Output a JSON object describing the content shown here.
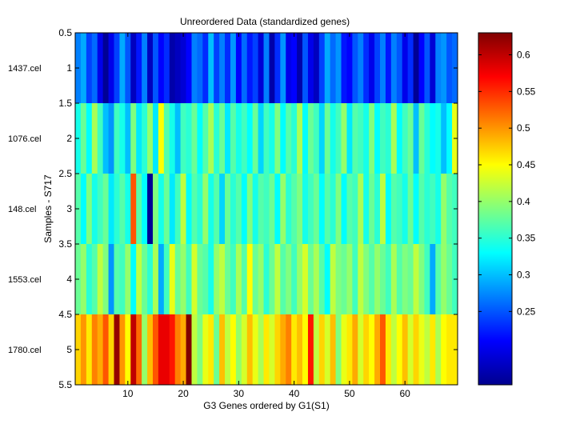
{
  "chart_data": {
    "type": "heatmap",
    "title": "Unreordered Data (standardized genes)",
    "xlabel": "G3 Genes ordered by G1(S1)",
    "ylabel": "Samples - S717",
    "xlim": [
      0.5,
      69.5
    ],
    "ylim": [
      0.5,
      5.5
    ],
    "x_ticks": [
      10,
      20,
      30,
      40,
      50,
      60
    ],
    "y_ticks": [
      0.5,
      1,
      1.5,
      2,
      2.5,
      3,
      3.5,
      4,
      4.5,
      5,
      5.5
    ],
    "row_labels": [
      "1437.cel",
      "1076.cel",
      "148.cel",
      "1553.cel",
      "1780.cel"
    ],
    "colorbar": {
      "colormap": "jet",
      "clim": [
        0.15,
        0.63
      ],
      "ticks": [
        0.25,
        0.3,
        0.35,
        0.4,
        0.45,
        0.5,
        0.55,
        0.6
      ],
      "tick_labels": [
        "0.25",
        "0.3",
        "0.35",
        "0.4",
        "0.45",
        "0.5",
        "0.55",
        "0.6"
      ]
    },
    "rows": [
      {
        "name": "1437.cel",
        "values": [
          0.27,
          0.29,
          0.24,
          0.26,
          0.2,
          0.16,
          0.2,
          0.24,
          0.29,
          0.25,
          0.18,
          0.22,
          0.27,
          0.18,
          0.25,
          0.21,
          0.23,
          0.17,
          0.18,
          0.19,
          0.21,
          0.27,
          0.26,
          0.23,
          0.3,
          0.24,
          0.27,
          0.23,
          0.28,
          0.21,
          0.26,
          0.22,
          0.24,
          0.19,
          0.27,
          0.17,
          0.23,
          0.28,
          0.2,
          0.21,
          0.17,
          0.25,
          0.2,
          0.18,
          0.24,
          0.29,
          0.26,
          0.28,
          0.22,
          0.21,
          0.25,
          0.27,
          0.23,
          0.2,
          0.24,
          0.27,
          0.22,
          0.27,
          0.25,
          0.2,
          0.23,
          0.16,
          0.21,
          0.25,
          0.19,
          0.27,
          0.28,
          0.25,
          0.26
        ]
      },
      {
        "name": "1076.cel",
        "values": [
          0.34,
          0.38,
          0.33,
          0.41,
          0.36,
          0.3,
          0.28,
          0.36,
          0.34,
          0.3,
          0.39,
          0.32,
          0.35,
          0.4,
          0.32,
          0.45,
          0.37,
          0.34,
          0.3,
          0.36,
          0.35,
          0.38,
          0.33,
          0.37,
          0.41,
          0.35,
          0.38,
          0.32,
          0.37,
          0.34,
          0.36,
          0.33,
          0.38,
          0.31,
          0.36,
          0.34,
          0.39,
          0.33,
          0.37,
          0.35,
          0.41,
          0.33,
          0.38,
          0.36,
          0.31,
          0.38,
          0.34,
          0.36,
          0.4,
          0.32,
          0.37,
          0.36,
          0.34,
          0.39,
          0.33,
          0.36,
          0.35,
          0.41,
          0.33,
          0.36,
          0.38,
          0.3,
          0.38,
          0.35,
          0.33,
          0.34,
          0.3,
          0.33,
          0.44
        ]
      },
      {
        "name": "148.cel",
        "values": [
          0.37,
          0.33,
          0.39,
          0.34,
          0.36,
          0.38,
          0.32,
          0.35,
          0.37,
          0.34,
          0.53,
          0.37,
          0.33,
          0.16,
          0.39,
          0.34,
          0.38,
          0.32,
          0.36,
          0.42,
          0.33,
          0.37,
          0.35,
          0.4,
          0.34,
          0.37,
          0.31,
          0.38,
          0.35,
          0.37,
          0.33,
          0.39,
          0.34,
          0.37,
          0.36,
          0.38,
          0.33,
          0.4,
          0.35,
          0.37,
          0.39,
          0.34,
          0.36,
          0.38,
          0.33,
          0.37,
          0.35,
          0.39,
          0.33,
          0.37,
          0.36,
          0.41,
          0.34,
          0.38,
          0.35,
          0.42,
          0.33,
          0.37,
          0.36,
          0.34,
          0.38,
          0.33,
          0.37,
          0.35,
          0.36,
          0.34,
          0.4,
          0.37,
          0.36
        ]
      },
      {
        "name": "1553.cel",
        "values": [
          0.38,
          0.4,
          0.35,
          0.37,
          0.42,
          0.39,
          0.28,
          0.37,
          0.36,
          0.4,
          0.33,
          0.42,
          0.38,
          0.35,
          0.41,
          0.29,
          0.36,
          0.44,
          0.38,
          0.4,
          0.36,
          0.43,
          0.38,
          0.37,
          0.34,
          0.4,
          0.42,
          0.38,
          0.36,
          0.41,
          0.37,
          0.45,
          0.38,
          0.4,
          0.35,
          0.38,
          0.42,
          0.37,
          0.39,
          0.36,
          0.4,
          0.43,
          0.38,
          0.41,
          0.37,
          0.33,
          0.42,
          0.39,
          0.38,
          0.4,
          0.36,
          0.42,
          0.39,
          0.37,
          0.4,
          0.38,
          0.36,
          0.41,
          0.37,
          0.39,
          0.38,
          0.42,
          0.39,
          0.36,
          0.29,
          0.37,
          0.4,
          0.38,
          0.36
        ]
      },
      {
        "name": "1780.cel",
        "values": [
          0.47,
          0.5,
          0.46,
          0.51,
          0.49,
          0.53,
          0.47,
          0.62,
          0.5,
          0.45,
          0.6,
          0.52,
          0.4,
          0.48,
          0.53,
          0.58,
          0.58,
          0.56,
          0.51,
          0.49,
          0.63,
          0.42,
          0.39,
          0.44,
          0.46,
          0.38,
          0.48,
          0.42,
          0.45,
          0.4,
          0.43,
          0.48,
          0.44,
          0.41,
          0.46,
          0.43,
          0.47,
          0.49,
          0.51,
          0.46,
          0.48,
          0.45,
          0.56,
          0.42,
          0.47,
          0.43,
          0.48,
          0.39,
          0.44,
          0.46,
          0.49,
          0.43,
          0.47,
          0.45,
          0.49,
          0.53,
          0.46,
          0.42,
          0.45,
          0.48,
          0.43,
          0.47,
          0.44,
          0.42,
          0.46,
          0.41,
          0.45,
          0.46,
          0.46
        ]
      }
    ]
  }
}
